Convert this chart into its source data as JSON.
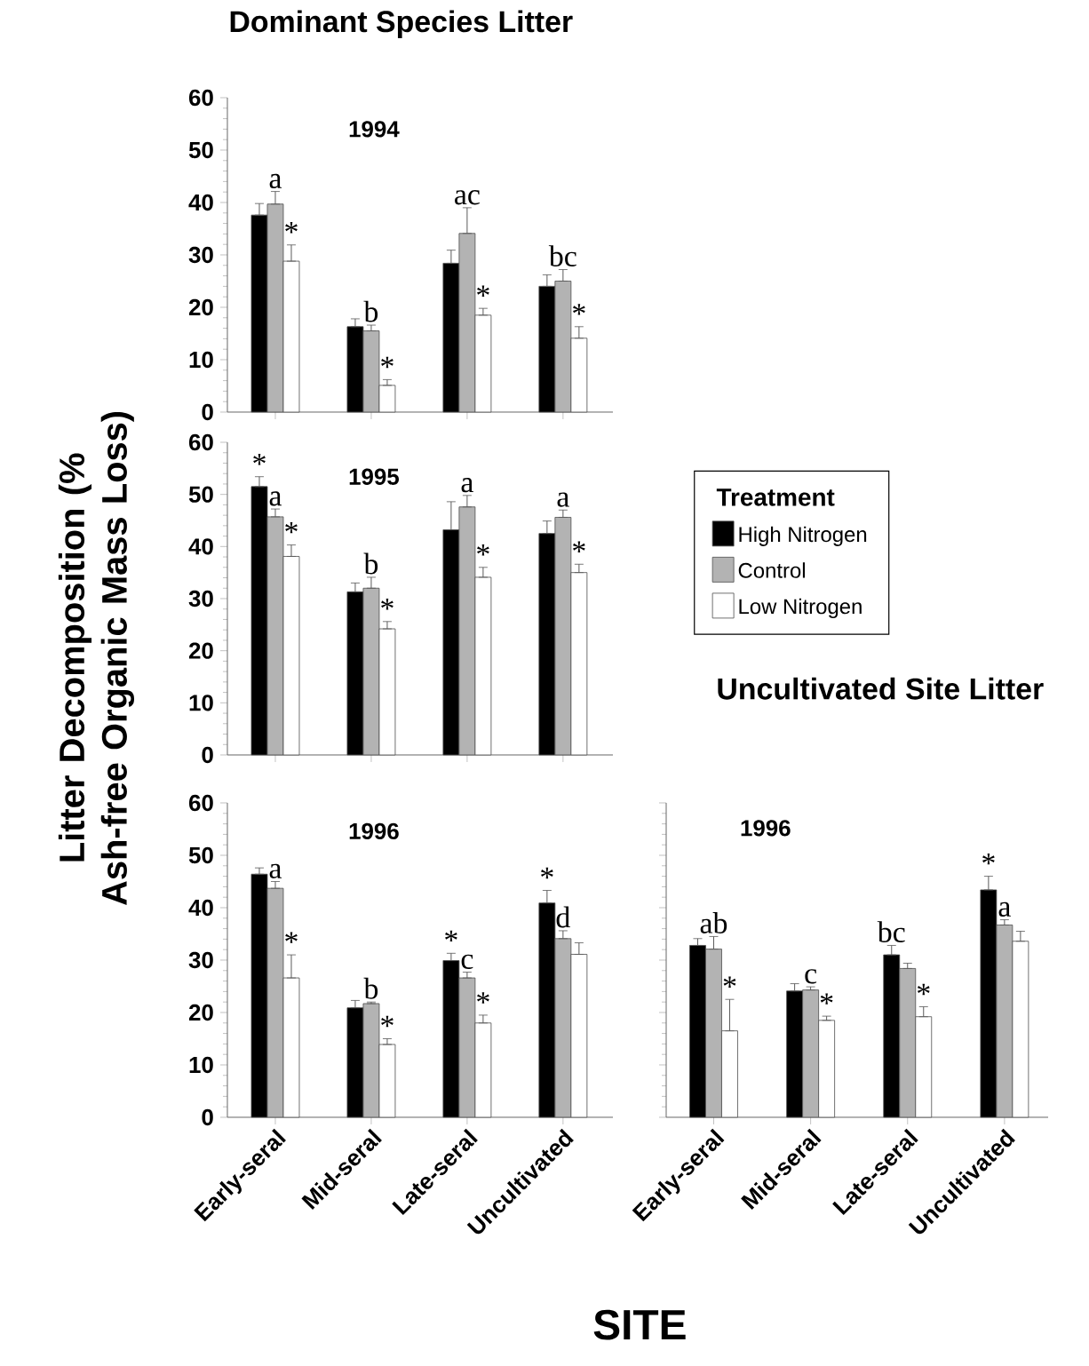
{
  "chart_data": [
    {
      "type": "bar",
      "title": "Dominant Species Litter",
      "subtitle": "1994",
      "categories": [
        "Early-seral",
        "Mid-seral",
        "Late-seral",
        "Uncultivated"
      ],
      "series": [
        {
          "color": "#000000",
          "values": [
            37.6,
            16.3,
            28.4,
            24
          ],
          "errors": [
            [
              37.6,
              39.8
            ],
            [
              16.3,
              17.8
            ],
            [
              28.4,
              30.9
            ],
            [
              24,
              26.2
            ]
          ]
        },
        {
          "color": "#b3b3b3",
          "values": [
            39.7,
            15.5,
            34.1,
            25
          ],
          "errors": [
            [
              39.7,
              42.1
            ],
            [
              15.5,
              16.6
            ],
            [
              34.1,
              39
            ],
            [
              25,
              27.2
            ]
          ]
        },
        {
          "color": "#ffffff",
          "values": [
            28.8,
            5.1,
            18.5,
            14.1
          ],
          "errors": [
            [
              28.8,
              31.9
            ],
            [
              5.1,
              6.2
            ],
            [
              18.5,
              19.8
            ],
            [
              14.1,
              16.3
            ]
          ]
        }
      ],
      "ylim": [
        0,
        60
      ],
      "yticks": [
        0,
        10,
        20,
        30,
        40,
        50,
        60
      ],
      "tick_labels": "y",
      "annotations": [
        {
          "text": "a",
          "x": "Early-seral",
          "y": 42.1
        },
        {
          "text": "*",
          "x": "Early-seral",
          "y": 31.9
        },
        {
          "text": "b",
          "x": "Mid-seral",
          "y": 16.6
        },
        {
          "text": "*",
          "x": "Mid-seral",
          "y": 6.2
        },
        {
          "text": "ac",
          "x": "Late-seral",
          "y": 39
        },
        {
          "text": "*",
          "x": "Late-seral",
          "y": 19.8
        },
        {
          "text": "bc",
          "x": "Uncultivated",
          "y": 27.2
        },
        {
          "text": "*",
          "x": "Uncultivated",
          "y": 16.3
        }
      ]
    },
    {
      "type": "bar",
      "subtitle": "1995",
      "ylabel": "Litter Decomposition (% Ash-free Organic Mass Loss)",
      "legend_title": "Treatment",
      "legend": "right",
      "categories": [
        "Early-seral",
        "Mid-seral",
        "Late-seral",
        "Uncultivated"
      ],
      "series": [
        {
          "name": "High Nitrogen",
          "color": "#000000",
          "values": [
            51.5,
            31.3,
            43.2,
            42.5
          ],
          "errors": [
            [
              51.5,
              53.4
            ],
            [
              31.3,
              33
            ],
            [
              43.2,
              48.6
            ],
            [
              42.5,
              44.9
            ]
          ]
        },
        {
          "name": "Control",
          "color": "#b3b3b3",
          "values": [
            45.7,
            32,
            47.6,
            45.6
          ],
          "errors": [
            [
              45.7,
              47.2
            ],
            [
              32,
              34.1
            ],
            [
              47.6,
              49.8
            ],
            [
              45.6,
              47
            ]
          ]
        },
        {
          "name": "Low Nitrogen",
          "color": "#ffffff",
          "values": [
            38.1,
            24.2,
            34.1,
            35
          ],
          "errors": [
            [
              38.1,
              40.3
            ],
            [
              24.2,
              25.6
            ],
            [
              34.1,
              36
            ],
            [
              35,
              36.6
            ]
          ]
        }
      ],
      "ylim": [
        0,
        60
      ],
      "yticks": [
        0,
        10,
        20,
        30,
        40,
        50,
        60
      ],
      "tick_labels": "y",
      "annotations": [
        {
          "text": "*",
          "x": "Early-seral",
          "y": 51.5
        },
        {
          "text": "a",
          "x": "Early-seral",
          "y": 47.2
        },
        {
          "text": "*",
          "x": "Early-seral",
          "y": 40.3
        },
        {
          "text": "b",
          "x": "Mid-seral",
          "y": 34.1
        },
        {
          "text": "*",
          "x": "Mid-seral",
          "y": 25.6
        },
        {
          "text": "a",
          "x": "Late-seral",
          "y": 49.8
        },
        {
          "text": "*",
          "x": "Late-seral",
          "y": 36
        },
        {
          "text": "a",
          "x": "Uncultivated",
          "y": 47
        },
        {
          "text": "*",
          "x": "Uncultivated",
          "y": 36.6
        }
      ]
    },
    {
      "type": "bar",
      "subtitle": "1996",
      "xlabel": "SITE",
      "categories": [
        "Early-seral",
        "Mid-seral",
        "Late-seral",
        "Uncultivated"
      ],
      "series": [
        {
          "color": "#000000",
          "values": [
            46.4,
            20.9,
            29.9,
            40.9
          ],
          "errors": [
            [
              46.4,
              47.6
            ],
            [
              20.9,
              22.3
            ],
            [
              29.9,
              31.3
            ],
            [
              40.9,
              43.3
            ]
          ]
        },
        {
          "color": "#b3b3b3",
          "values": [
            43.7,
            21.7,
            26.6,
            34.1
          ],
          "errors": [
            [
              43.7,
              45
            ],
            [
              21.7,
              22
            ],
            [
              26.6,
              27.7
            ],
            [
              34.1,
              35.6
            ]
          ]
        },
        {
          "color": "#ffffff",
          "values": [
            26.6,
            13.9,
            18,
            31.1
          ],
          "errors": [
            [
              26.6,
              31
            ],
            [
              13.9,
              15
            ],
            [
              18,
              19.5
            ],
            [
              31.1,
              33.3
            ]
          ]
        }
      ],
      "ylim": [
        0,
        60
      ],
      "yticks": [
        0,
        10,
        20,
        30,
        40,
        50,
        60
      ],
      "annotations": [
        {
          "text": "a",
          "x": "Early-seral",
          "y": 45
        },
        {
          "text": "*",
          "x": "Early-seral",
          "y": 31
        },
        {
          "text": "b",
          "x": "Mid-seral",
          "y": 22
        },
        {
          "text": "*",
          "x": "Mid-seral",
          "y": 15
        },
        {
          "text": "*",
          "x": "Late-seral",
          "y": 29.9
        },
        {
          "text": "c",
          "x": "Late-seral",
          "y": 27.7
        },
        {
          "text": "*",
          "x": "Late-seral",
          "y": 19.5
        },
        {
          "text": "*",
          "x": "Uncultivated",
          "y": 40.9
        },
        {
          "text": "d",
          "x": "Uncultivated",
          "y": 35.6
        }
      ]
    },
    {
      "type": "bar",
      "title": "Uncultivated Site Litter",
      "subtitle": "1996",
      "categories": [
        "Early-seral",
        "Mid-seral",
        "Late-seral",
        "Uncultivated"
      ],
      "series": [
        {
          "color": "#000000",
          "values": [
            32.8,
            24.1,
            31,
            43.4
          ],
          "errors": [
            [
              32.8,
              34.1
            ],
            [
              24.1,
              25.5
            ],
            [
              31,
              32.8
            ],
            [
              43.4,
              46
            ]
          ]
        },
        {
          "color": "#b3b3b3",
          "values": [
            32.1,
            24.3,
            28.4,
            36.7
          ],
          "errors": [
            [
              32.1,
              34.5
            ],
            [
              24.3,
              24.9
            ],
            [
              28.4,
              29.4
            ],
            [
              36.7,
              37.7
            ]
          ]
        },
        {
          "color": "#ffffff",
          "values": [
            16.5,
            18.5,
            19.2,
            33.6
          ],
          "errors": [
            [
              16.5,
              22.5
            ],
            [
              18.5,
              19.3
            ],
            [
              19.2,
              21.1
            ],
            [
              33.6,
              35.5
            ]
          ]
        }
      ],
      "ylim": [
        0,
        60
      ],
      "yticks": [
        0,
        10,
        20,
        30,
        40,
        50,
        60
      ],
      "tick_labels": "x",
      "annotations": [
        {
          "text": "ab",
          "x": "Early-seral",
          "y": 34.5
        },
        {
          "text": "*",
          "x": "Early-seral",
          "y": 22.5
        },
        {
          "text": "c",
          "x": "Mid-seral",
          "y": 24.9
        },
        {
          "text": "*",
          "x": "Mid-seral",
          "y": 19.3
        },
        {
          "text": "bc",
          "x": "Late-seral",
          "y": 31
        },
        {
          "text": "*",
          "x": "Late-seral",
          "y": 21.1
        },
        {
          "text": "*",
          "x": "Uncultivated",
          "y": 43.4
        },
        {
          "text": "a",
          "x": "Uncultivated",
          "y": 37.7
        }
      ]
    }
  ]
}
